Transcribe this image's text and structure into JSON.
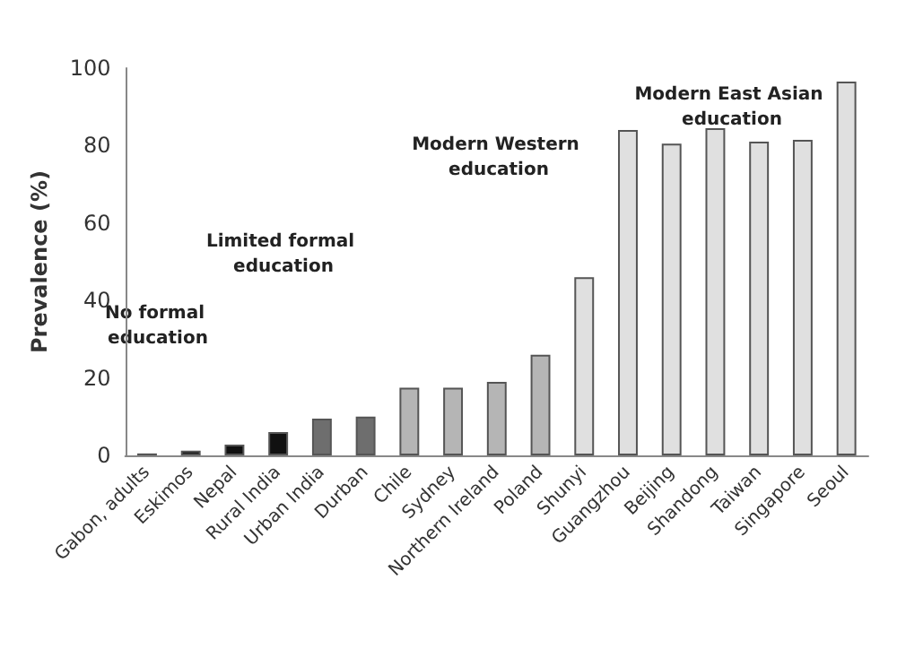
{
  "chart_data": {
    "type": "bar",
    "ylabel": "Prevalence (%)",
    "categories": [
      "Gabon, adults",
      "Eskimos",
      "Nepal",
      "Rural India",
      "Urban India",
      "Durban",
      "Chile",
      "Sydney",
      "Northern Ireland",
      "Poland",
      "Shunyi",
      "Guangzhou",
      "Beijing",
      "Shandong",
      "Taiwan",
      "Singapore",
      "Seoul"
    ],
    "values": [
      0.5,
      1.2,
      2.8,
      6,
      9.5,
      10,
      17.5,
      17.5,
      19,
      26,
      46,
      84,
      80.5,
      84.5,
      81,
      81.5,
      96.5
    ],
    "colors": [
      "#111111",
      "#111111",
      "#111111",
      "#111111",
      "#6e6e6e",
      "#6e6e6e",
      "#b5b5b5",
      "#b5b5b5",
      "#b5b5b5",
      "#b5b5b5",
      "#e0e0e0",
      "#e0e0e0",
      "#e0e0e0",
      "#e0e0e0",
      "#e0e0e0",
      "#e0e0e0",
      "#e0e0e0"
    ],
    "ylim": [
      0,
      100
    ],
    "yticks": [
      0,
      20,
      40,
      60,
      80,
      100
    ],
    "grid": false,
    "annotations": [
      "No formal education",
      "Limited formal education",
      "Modern Western education",
      "Modern East Asian education"
    ]
  }
}
